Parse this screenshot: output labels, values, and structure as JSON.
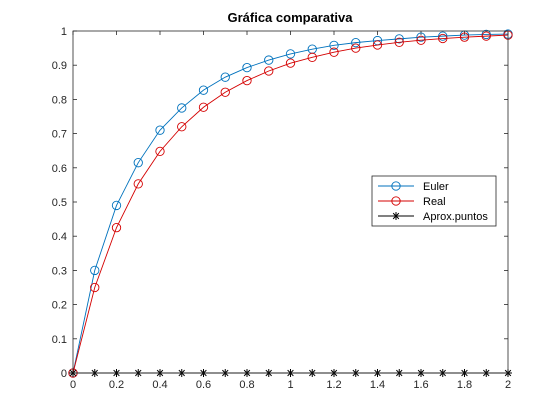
{
  "chart_data": {
    "type": "line",
    "title": "Gráfica comparativa",
    "xlabel": "",
    "ylabel": "",
    "xlim": [
      0,
      2
    ],
    "ylim": [
      0,
      1
    ],
    "xticks": [
      "0",
      "0.2",
      "0.4",
      "0.6",
      "0.8",
      "1",
      "1.2",
      "1.4",
      "1.6",
      "1.8",
      "2"
    ],
    "yticks": [
      "0",
      "0.1",
      "0.2",
      "0.3",
      "0.4",
      "0.5",
      "0.6",
      "0.7",
      "0.8",
      "0.9",
      "1"
    ],
    "grid": false,
    "legend_position": "right-middle",
    "x": [
      0,
      0.1,
      0.2,
      0.3,
      0.4,
      0.5,
      0.6,
      0.7,
      0.8,
      0.9,
      1.0,
      1.1,
      1.2,
      1.3,
      1.4,
      1.5,
      1.6,
      1.7,
      1.8,
      1.9,
      2.0
    ],
    "series": [
      {
        "name": "Euler",
        "color": "#0072BD",
        "marker": "circle",
        "values": [
          0,
          0.3,
          0.49,
          0.615,
          0.71,
          0.775,
          0.827,
          0.865,
          0.893,
          0.915,
          0.933,
          0.947,
          0.958,
          0.966,
          0.972,
          0.977,
          0.982,
          0.985,
          0.988,
          0.99,
          0.991
        ]
      },
      {
        "name": "Real",
        "color": "#D40000",
        "marker": "circle",
        "values": [
          0,
          0.25,
          0.425,
          0.553,
          0.648,
          0.72,
          0.777,
          0.821,
          0.855,
          0.883,
          0.906,
          0.923,
          0.938,
          0.95,
          0.959,
          0.967,
          0.973,
          0.978,
          0.982,
          0.985,
          0.988
        ]
      },
      {
        "name": "Aprox.puntos",
        "color": "#000000",
        "marker": "asterisk",
        "values": [
          0,
          0,
          0,
          0,
          0,
          0,
          0,
          0,
          0,
          0,
          0,
          0,
          0,
          0,
          0,
          0,
          0,
          0,
          0,
          0,
          0
        ]
      }
    ]
  }
}
